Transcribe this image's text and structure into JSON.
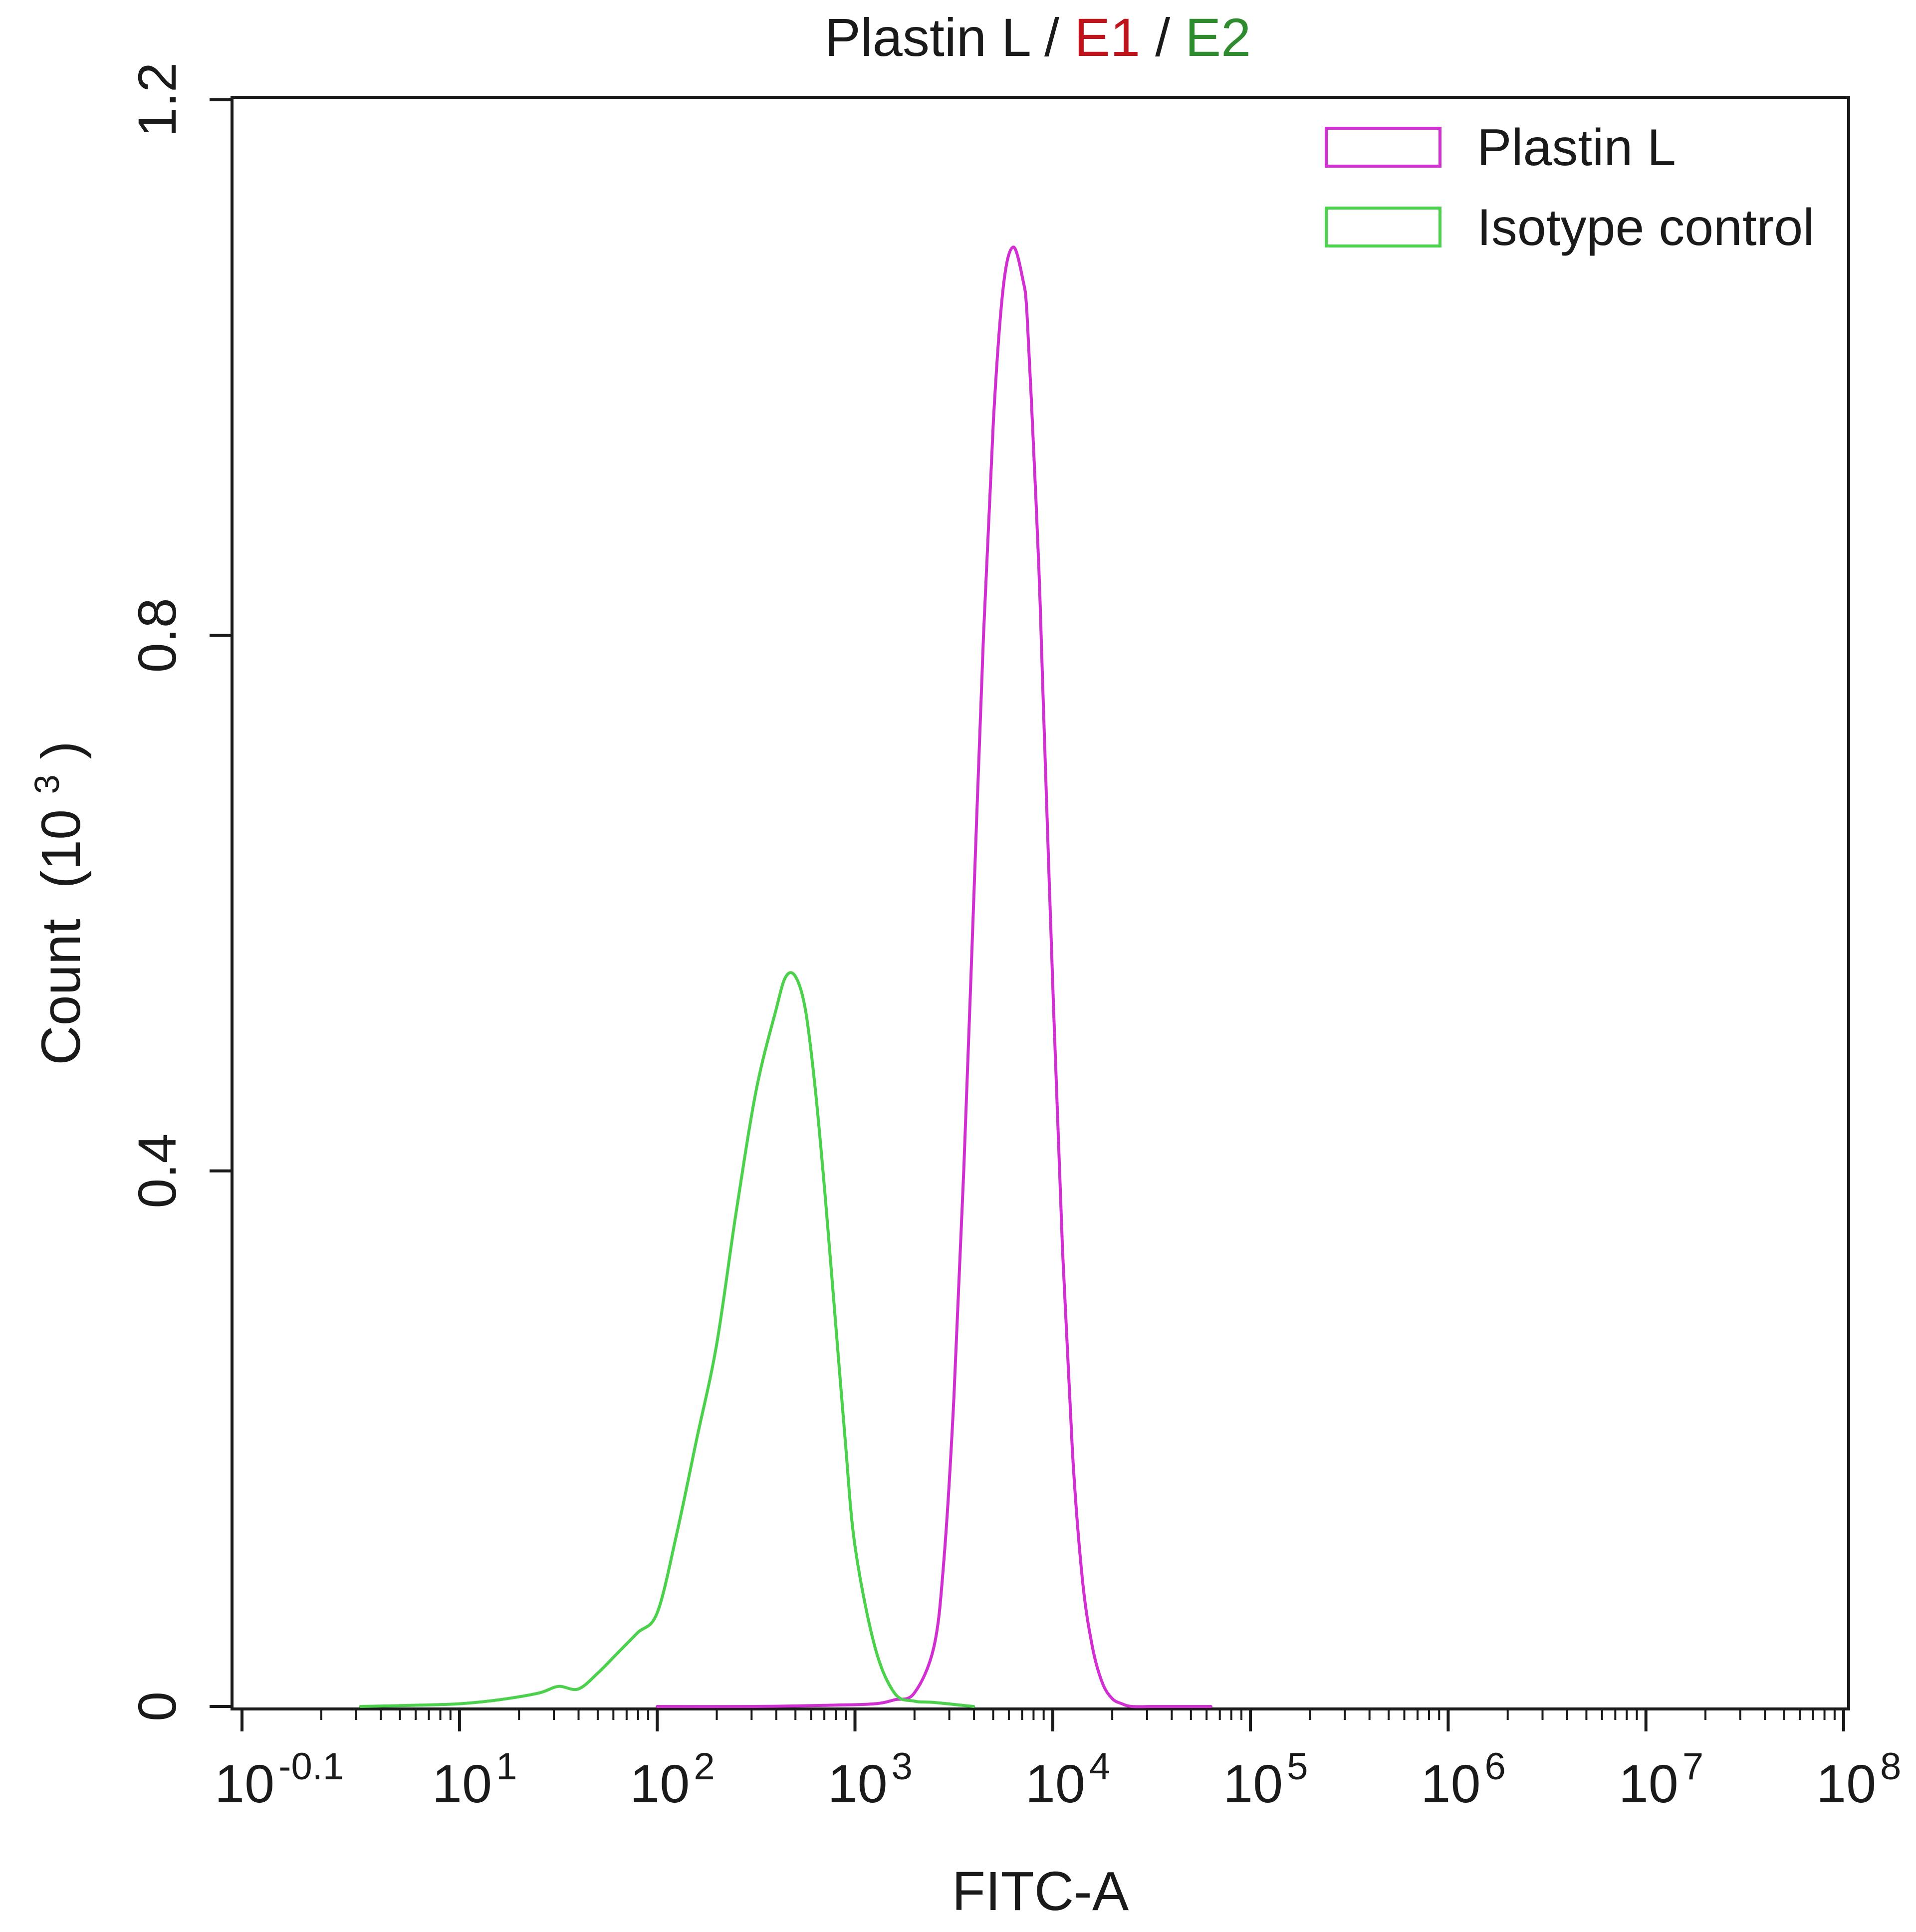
{
  "chart_data": {
    "type": "line",
    "title": {
      "parts": [
        {
          "text": "Plastin L",
          "color": "#1a1a1a"
        },
        {
          "text": " / ",
          "color": "#1a1a1a"
        },
        {
          "text": "E1",
          "color": "#c0141c"
        },
        {
          "text": " / ",
          "color": "#1a1a1a"
        },
        {
          "text": "E2",
          "color": "#2e8b2e"
        }
      ]
    },
    "xlabel": "FITC-A",
    "ylabel": "Count",
    "ylabel_unit_open": "(10",
    "ylabel_unit_exp": "3",
    "ylabel_unit_close": ")",
    "x_scale": "log",
    "xlim": [
      -0.1,
      8
    ],
    "ylim": [
      0,
      1.2
    ],
    "grid": false,
    "legend_position": "top-right",
    "x_ticks": [
      {
        "base": "10",
        "exp": "-0.1",
        "value": -0.1
      },
      {
        "base": "10",
        "exp": "1",
        "value": 1
      },
      {
        "base": "10",
        "exp": "2",
        "value": 2
      },
      {
        "base": "10",
        "exp": "3",
        "value": 3
      },
      {
        "base": "10",
        "exp": "4",
        "value": 4
      },
      {
        "base": "10",
        "exp": "5",
        "value": 5
      },
      {
        "base": "10",
        "exp": "6",
        "value": 6
      },
      {
        "base": "10",
        "exp": "7",
        "value": 7
      },
      {
        "base": "10",
        "exp": "8",
        "value": 8
      }
    ],
    "y_ticks": [
      {
        "label": "0",
        "value": 0
      },
      {
        "label": "0.4",
        "value": 0.4
      },
      {
        "label": "0.8",
        "value": 0.8
      },
      {
        "label": "1.2",
        "value": 1.2
      }
    ],
    "series": [
      {
        "name": "Plastin L",
        "color": "#d22fd2",
        "x_log10": [
          2.0,
          2.5,
          2.9,
          3.1,
          3.2,
          3.3,
          3.4,
          3.45,
          3.5,
          3.55,
          3.6,
          3.65,
          3.7,
          3.75,
          3.8,
          3.85,
          3.87,
          3.9,
          3.93,
          3.95,
          4.0,
          4.05,
          4.1,
          4.15,
          4.2,
          4.25,
          4.3,
          4.35,
          4.4,
          4.5,
          4.6,
          4.8
        ],
        "y": [
          0,
          0,
          0.001,
          0.002,
          0.005,
          0.01,
          0.045,
          0.11,
          0.23,
          0.4,
          0.6,
          0.8,
          0.96,
          1.06,
          1.09,
          1.065,
          1.04,
          0.95,
          0.85,
          0.76,
          0.54,
          0.34,
          0.19,
          0.095,
          0.045,
          0.018,
          0.006,
          0.002,
          0.0,
          0,
          0,
          0
        ]
      },
      {
        "name": "Isotype control",
        "color": "#4cd14c",
        "x_log10": [
          0.5,
          0.8,
          1.0,
          1.2,
          1.4,
          1.5,
          1.6,
          1.7,
          1.8,
          1.9,
          2.0,
          2.1,
          2.2,
          2.3,
          2.4,
          2.5,
          2.6,
          2.65,
          2.7,
          2.75,
          2.8,
          2.85,
          2.9,
          2.95,
          3.0,
          3.1,
          3.2,
          3.3,
          3.4,
          3.6
        ],
        "y": [
          0.0,
          0.001,
          0.002,
          0.005,
          0.01,
          0.015,
          0.013,
          0.025,
          0.04,
          0.055,
          0.07,
          0.13,
          0.2,
          0.27,
          0.37,
          0.46,
          0.52,
          0.545,
          0.545,
          0.52,
          0.46,
          0.38,
          0.29,
          0.2,
          0.12,
          0.045,
          0.01,
          0.004,
          0.003,
          0.0
        ]
      }
    ]
  }
}
